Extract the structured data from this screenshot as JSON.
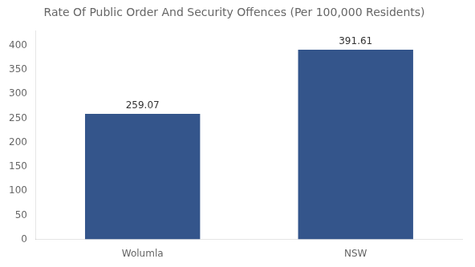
{
  "chart_data": {
    "type": "bar",
    "title": "Rate Of Public Order And Security Offences (Per 100,000 Residents)",
    "categories": [
      "Wolumla",
      "NSW"
    ],
    "values": [
      259.07,
      391.61
    ],
    "color": "#34558b",
    "ylim": [
      0,
      430
    ],
    "yticks": [
      0,
      50,
      100,
      150,
      200,
      250,
      300,
      350,
      400
    ],
    "grid": false,
    "data_labels": true
  }
}
